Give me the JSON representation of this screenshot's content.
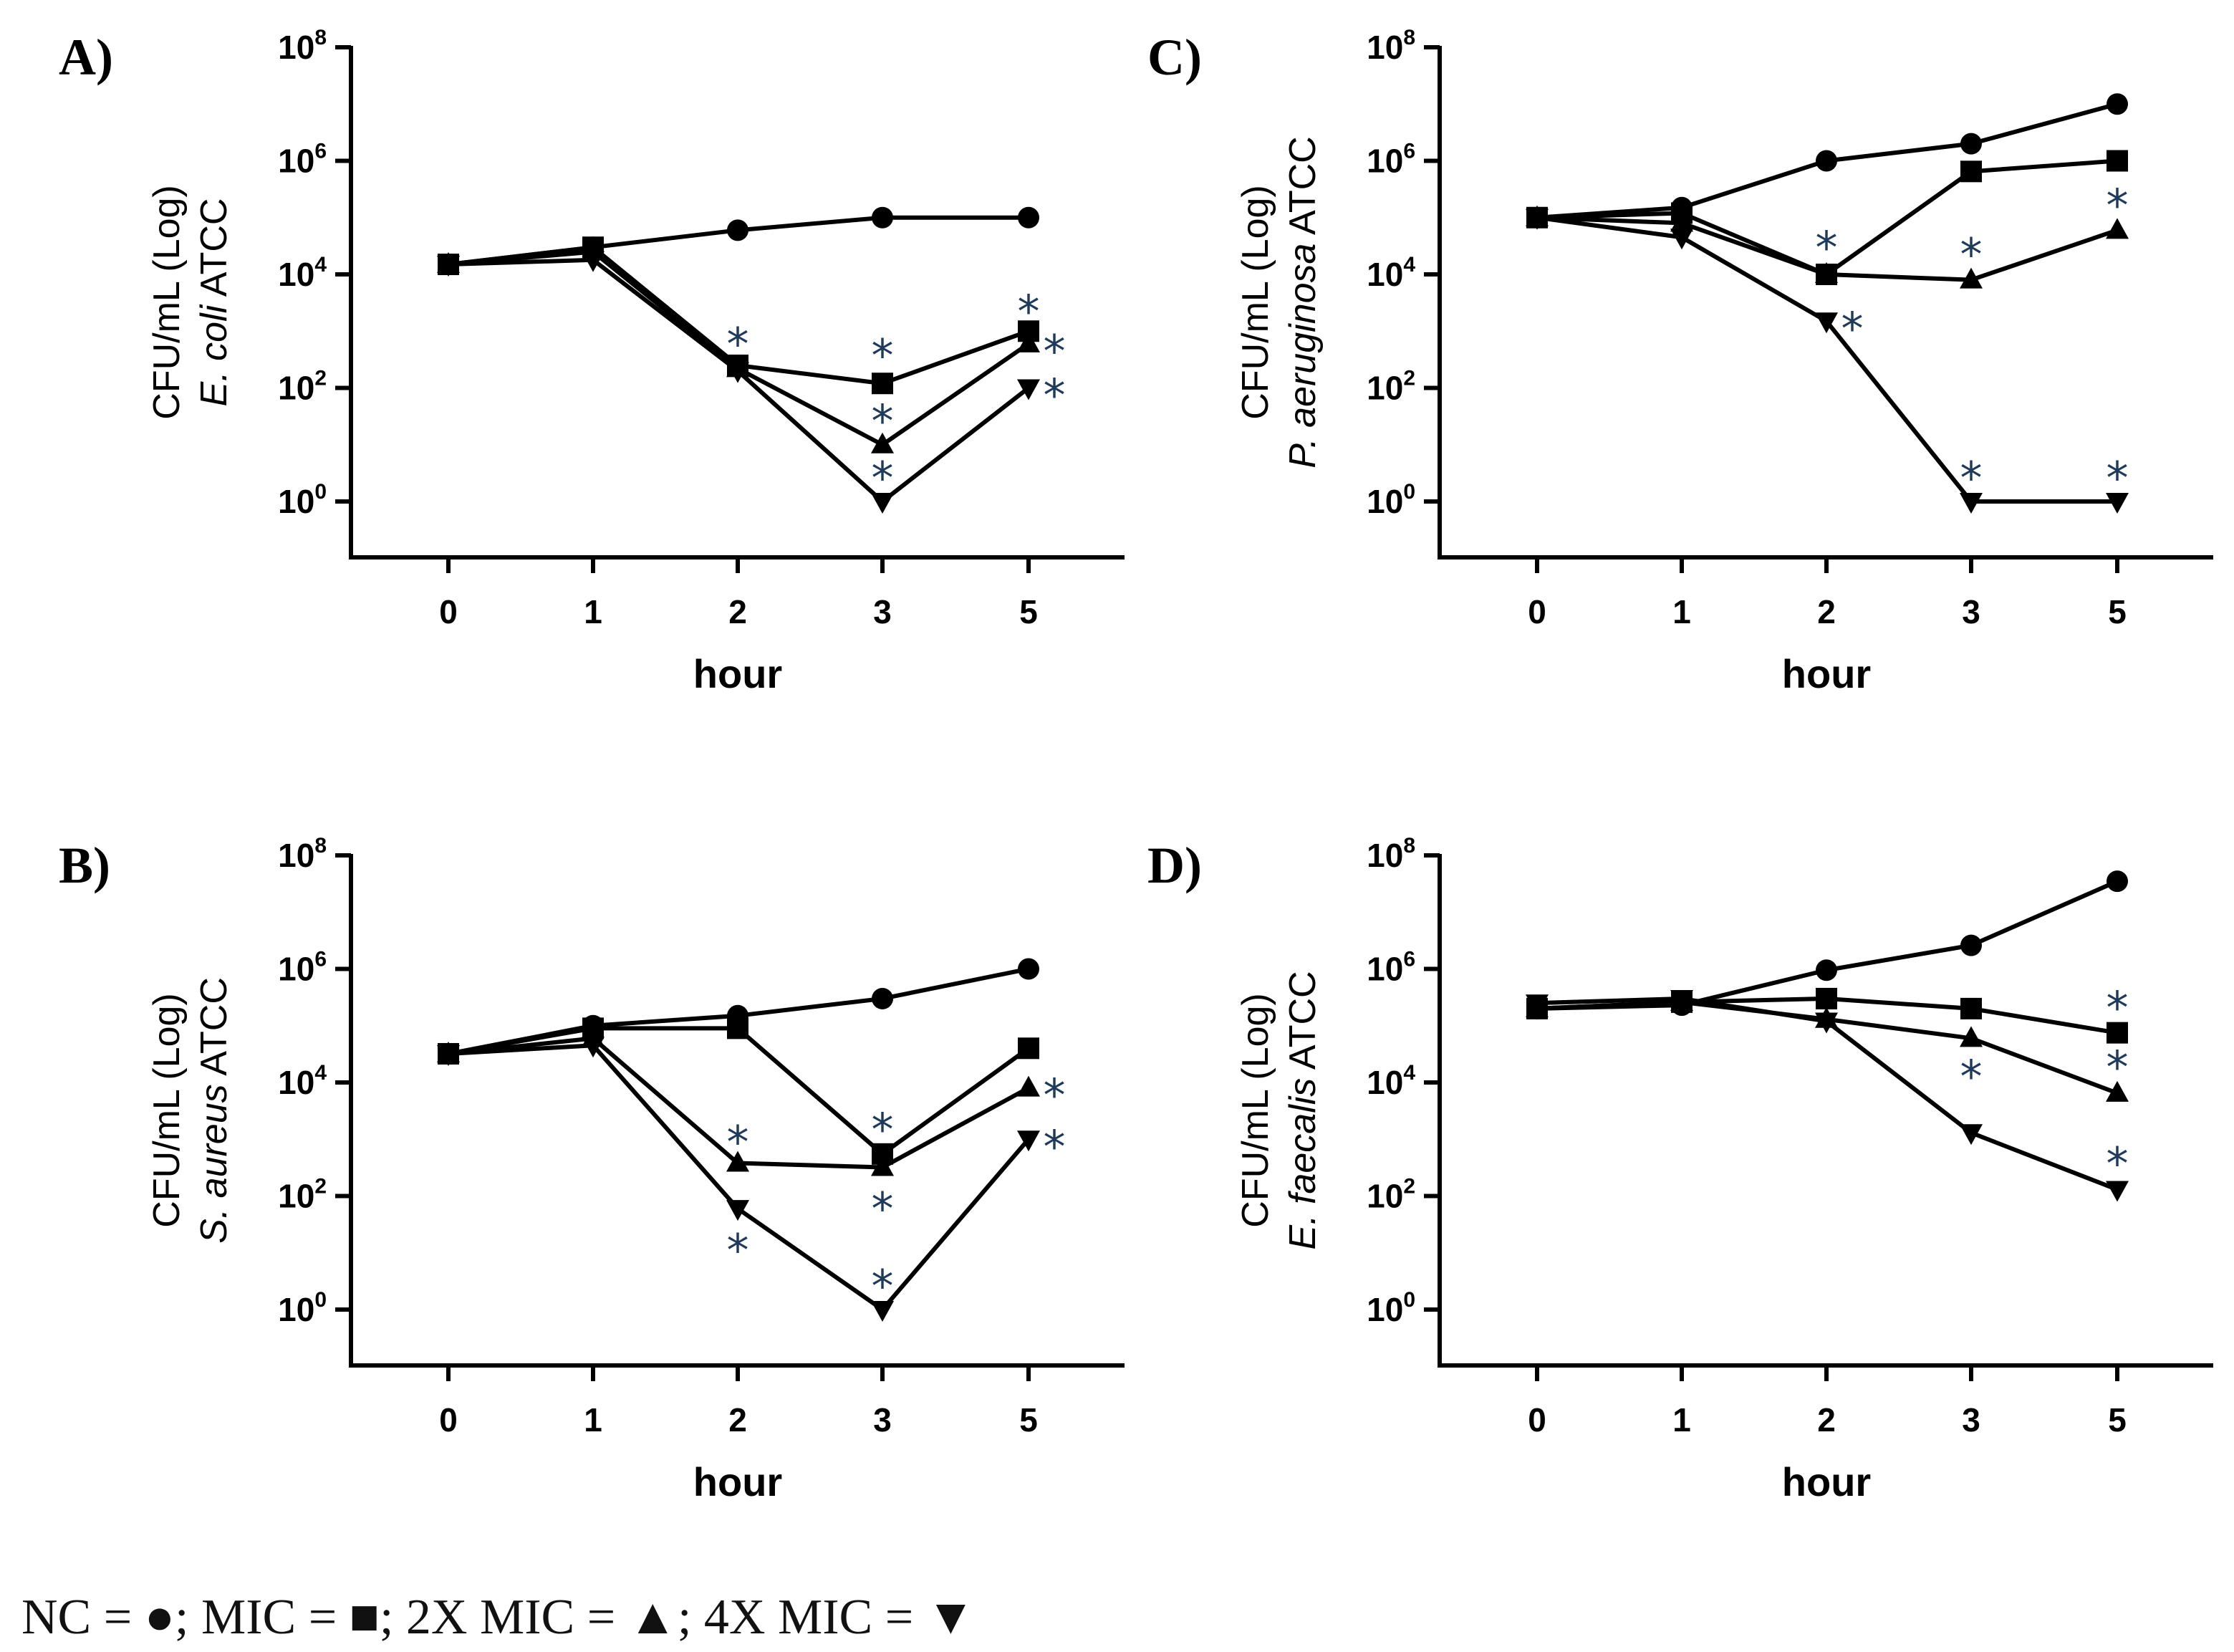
{
  "figure": {
    "legend": {
      "nc_label": "NC = ",
      "nc_symbol": "●",
      "mic_label": "; MIC = ",
      "mic_symbol": "■",
      "mic2x_label": "; 2X MIC = ",
      "mic2x_symbol": "▲",
      "mic4x_label": "; 4X MIC = ",
      "mic4x_symbol": "▼"
    },
    "colors": {
      "axes": "#000000",
      "asterisk": "#1f3a5a",
      "background": "#ffffff"
    }
  },
  "chart_data": [
    {
      "type": "line",
      "panel": "A)",
      "ylabel": "CFU/mL (Log)",
      "organism": "E. coli",
      "organism_suffix": " ATCC",
      "xlabel": "hour",
      "categories": [
        "0",
        "1",
        "2",
        "3",
        "5"
      ],
      "yscale": "log10",
      "ylim_exp": [
        -1,
        8
      ],
      "yticks": [
        {
          "base": "10",
          "exp": "0"
        },
        {
          "base": "10",
          "exp": "2"
        },
        {
          "base": "10",
          "exp": "4"
        },
        {
          "base": "10",
          "exp": "6"
        },
        {
          "base": "10",
          "exp": "8"
        }
      ],
      "series": [
        {
          "name": "NC",
          "marker": "circle",
          "values": [
            15000,
            30000,
            60000,
            100000,
            100000
          ]
        },
        {
          "name": "MIC",
          "marker": "square",
          "values": [
            15000,
            30000,
            250,
            120,
            1000
          ]
        },
        {
          "name": "2X MIC",
          "marker": "triangle-up",
          "values": [
            15000,
            25000,
            220,
            10,
            600
          ]
        },
        {
          "name": "4X MIC",
          "marker": "triangle-down",
          "values": [
            15000,
            18000,
            200,
            1,
            100
          ]
        }
      ],
      "annotations": [
        {
          "text": "*",
          "x": "2",
          "y": 800,
          "pos": "above"
        },
        {
          "text": "*",
          "x": "3",
          "y": 500,
          "pos": "above"
        },
        {
          "text": "*",
          "x": "3",
          "y": 35,
          "pos": "above"
        },
        {
          "text": "*",
          "x": "3",
          "y": 3.5,
          "pos": "above"
        },
        {
          "text": "*",
          "x": "5",
          "y": 3000,
          "pos": "above"
        },
        {
          "text": "*",
          "x": "5",
          "y": 600,
          "pos": "right"
        },
        {
          "text": "*",
          "x": "5",
          "y": 100,
          "pos": "right"
        }
      ]
    },
    {
      "type": "line",
      "panel": "B)",
      "ylabel": "CFU/mL (Log)",
      "organism": "S. aureus",
      "organism_suffix": " ATCC",
      "xlabel": "hour",
      "categories": [
        "0",
        "1",
        "2",
        "3",
        "5"
      ],
      "yscale": "log10",
      "ylim_exp": [
        -1,
        8
      ],
      "yticks": [
        {
          "base": "10",
          "exp": "0"
        },
        {
          "base": "10",
          "exp": "2"
        },
        {
          "base": "10",
          "exp": "4"
        },
        {
          "base": "10",
          "exp": "6"
        },
        {
          "base": "10",
          "exp": "8"
        }
      ],
      "series": [
        {
          "name": "NC",
          "marker": "circle",
          "values": [
            32000,
            100000,
            150000,
            300000,
            1000000
          ]
        },
        {
          "name": "MIC",
          "marker": "square",
          "values": [
            32000,
            90000,
            90000,
            550,
            40000
          ]
        },
        {
          "name": "2X MIC",
          "marker": "triangle-up",
          "values": [
            32000,
            60000,
            380,
            320,
            8000
          ]
        },
        {
          "name": "4X MIC",
          "marker": "triangle-down",
          "values": [
            32000,
            45000,
            60,
            1,
            1000
          ]
        }
      ],
      "annotations": [
        {
          "text": "*",
          "x": "2",
          "y": 1200,
          "pos": "above"
        },
        {
          "text": "*",
          "x": "2",
          "y": 15,
          "pos": "below"
        },
        {
          "text": "*",
          "x": "3",
          "y": 2000,
          "pos": "above"
        },
        {
          "text": "*",
          "x": "3",
          "y": 80,
          "pos": "below"
        },
        {
          "text": "*",
          "x": "3",
          "y": 3.5,
          "pos": "above"
        },
        {
          "text": "*",
          "x": "5",
          "y": 8000,
          "pos": "right"
        },
        {
          "text": "*",
          "x": "5",
          "y": 1000,
          "pos": "right"
        }
      ]
    },
    {
      "type": "line",
      "panel": "C)",
      "ylabel": "CFU/mL (Log)",
      "organism": "P. aeruginosa",
      "organism_suffix": " ATCC",
      "xlabel": "hour",
      "categories": [
        "0",
        "1",
        "2",
        "3",
        "5"
      ],
      "yscale": "log10",
      "ylim_exp": [
        -1,
        8
      ],
      "yticks": [
        {
          "base": "10",
          "exp": "0"
        },
        {
          "base": "10",
          "exp": "2"
        },
        {
          "base": "10",
          "exp": "4"
        },
        {
          "base": "10",
          "exp": "6"
        },
        {
          "base": "10",
          "exp": "8"
        }
      ],
      "series": [
        {
          "name": "NC",
          "marker": "circle",
          "values": [
            100000,
            150000,
            1000000,
            2000000,
            10000000
          ]
        },
        {
          "name": "MIC",
          "marker": "square",
          "values": [
            100000,
            120000,
            10000,
            650000,
            1000000
          ]
        },
        {
          "name": "2X MIC",
          "marker": "triangle-up",
          "values": [
            100000,
            80000,
            10000,
            8000,
            60000
          ]
        },
        {
          "name": "4X MIC",
          "marker": "triangle-down",
          "values": [
            100000,
            45000,
            1500,
            1,
            1
          ]
        }
      ],
      "annotations": [
        {
          "text": "*",
          "x": "2",
          "y": 40000,
          "pos": "above"
        },
        {
          "text": "*",
          "x": "2",
          "y": 1500,
          "pos": "right"
        },
        {
          "text": "*",
          "x": "3",
          "y": 30000,
          "pos": "above"
        },
        {
          "text": "*",
          "x": "3",
          "y": 3.5,
          "pos": "above"
        },
        {
          "text": "*",
          "x": "5",
          "y": 220000,
          "pos": "above"
        },
        {
          "text": "*",
          "x": "5",
          "y": 3.5,
          "pos": "above"
        }
      ]
    },
    {
      "type": "line",
      "panel": "D)",
      "ylabel": "CFU/mL (Log)",
      "organism": "E. faecalis",
      "organism_suffix": " ATCC",
      "xlabel": "hour",
      "categories": [
        "0",
        "1",
        "2",
        "3",
        "5"
      ],
      "yscale": "log10",
      "ylim_exp": [
        -1,
        8
      ],
      "yticks": [
        {
          "base": "10",
          "exp": "0"
        },
        {
          "base": "10",
          "exp": "2"
        },
        {
          "base": "10",
          "exp": "4"
        },
        {
          "base": "10",
          "exp": "6"
        },
        {
          "base": "10",
          "exp": "8"
        }
      ],
      "series": [
        {
          "name": "NC",
          "marker": "circle",
          "values": [
            200000,
            230000,
            950000,
            2600000,
            35000000
          ]
        },
        {
          "name": "MIC",
          "marker": "square",
          "values": [
            200000,
            260000,
            300000,
            200000,
            75000
          ]
        },
        {
          "name": "2X MIC",
          "marker": "triangle-up",
          "values": [
            200000,
            260000,
            130000,
            60000,
            6500
          ]
        },
        {
          "name": "4X MIC",
          "marker": "triangle-down",
          "values": [
            250000,
            300000,
            120000,
            1300,
            130
          ]
        }
      ],
      "annotations": [
        {
          "text": "*",
          "x": "3",
          "y": 17000,
          "pos": "below"
        },
        {
          "text": "*",
          "x": "5",
          "y": 280000,
          "pos": "above"
        },
        {
          "text": "*",
          "x": "5",
          "y": 25000,
          "pos": "above"
        },
        {
          "text": "*",
          "x": "5",
          "y": 500,
          "pos": "above"
        }
      ]
    }
  ]
}
